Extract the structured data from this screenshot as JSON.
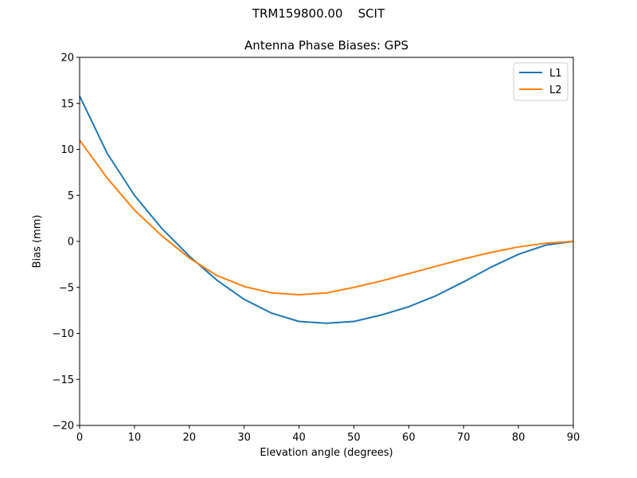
{
  "chart_data": {
    "type": "line",
    "suptitle_parts": [
      "TRM159800.00",
      "SCIT"
    ],
    "title": "Antenna Phase Biases: GPS",
    "xlabel": "Elevation angle (degrees)",
    "ylabel": "Bias (mm)",
    "xlim": [
      0,
      90
    ],
    "ylim": [
      -20,
      20
    ],
    "xticks": [
      0,
      10,
      20,
      30,
      40,
      50,
      60,
      70,
      80,
      90
    ],
    "yticks": [
      -20,
      -15,
      -10,
      -5,
      0,
      5,
      10,
      15,
      20
    ],
    "ytick_labels": [
      "−20",
      "−15",
      "−10",
      "−5",
      "0",
      "5",
      "10",
      "15",
      "20"
    ],
    "grid": false,
    "legend_position": "top-right",
    "x": [
      0,
      5,
      10,
      15,
      20,
      25,
      30,
      35,
      40,
      45,
      50,
      55,
      60,
      65,
      70,
      75,
      80,
      85,
      90
    ],
    "series": [
      {
        "name": "L1",
        "color": "#1f77b4",
        "values": [
          15.8,
          9.6,
          5.0,
          1.4,
          -1.6,
          -4.2,
          -6.3,
          -7.8,
          -8.7,
          -8.9,
          -8.7,
          -8.0,
          -7.1,
          -5.9,
          -4.4,
          -2.8,
          -1.4,
          -0.4,
          0.0
        ]
      },
      {
        "name": "L2",
        "color": "#ff7f0e",
        "values": [
          11.0,
          6.9,
          3.4,
          0.6,
          -1.8,
          -3.7,
          -4.9,
          -5.6,
          -5.8,
          -5.6,
          -5.0,
          -4.3,
          -3.5,
          -2.7,
          -1.9,
          -1.2,
          -0.6,
          -0.2,
          0.0
        ]
      }
    ]
  }
}
